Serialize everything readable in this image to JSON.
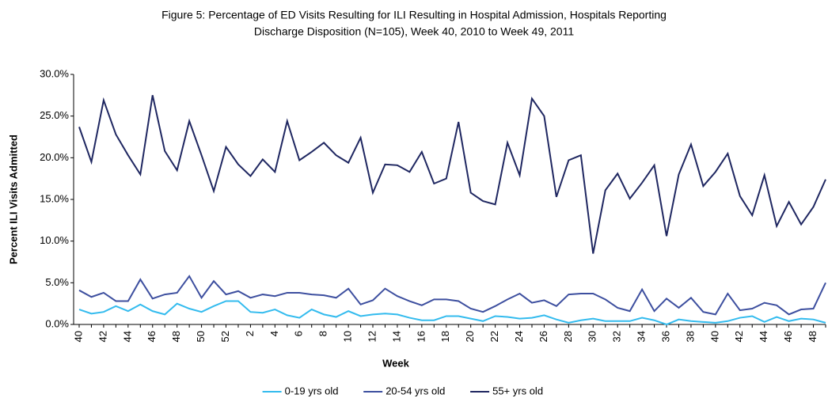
{
  "chart_data": {
    "type": "line",
    "title": [
      "Figure 5: Percentage of ED Visits Resulting for ILI Resulting in Hospital Admission, Hospitals Reporting",
      "Discharge Disposition (N=105), Week 40, 2010 to Week 49, 2011"
    ],
    "x_label": "Week",
    "y_label": "Percent ILI Visits Admitted",
    "categories": [
      "40",
      null,
      "42",
      null,
      "44",
      null,
      "46",
      null,
      "48",
      null,
      "50",
      null,
      "52",
      null,
      "2",
      null,
      "4",
      null,
      "6",
      null,
      "8",
      null,
      "10",
      null,
      "12",
      null,
      "14",
      null,
      "16",
      null,
      "18",
      null,
      "20",
      null,
      "22",
      null,
      "24",
      null,
      "26",
      null,
      "28",
      null,
      "30",
      null,
      "32",
      null,
      "34",
      null,
      "36",
      null,
      "38",
      null,
      "40",
      null,
      "42",
      null,
      "44",
      null,
      "46",
      null,
      "48",
      null
    ],
    "series": [
      {
        "name": "0-19 yrs old",
        "color": "#33bbee",
        "values": [
          1.8,
          1.3,
          1.5,
          2.2,
          1.6,
          2.4,
          1.6,
          1.2,
          2.5,
          1.9,
          1.5,
          2.2,
          2.8,
          2.8,
          1.5,
          1.4,
          1.8,
          1.1,
          0.8,
          1.8,
          1.2,
          0.9,
          1.6,
          1.0,
          1.2,
          1.3,
          1.2,
          0.8,
          0.5,
          0.5,
          1.0,
          1.0,
          0.7,
          0.4,
          1.0,
          0.9,
          0.7,
          0.8,
          1.1,
          0.6,
          0.2,
          0.5,
          0.7,
          0.4,
          0.4,
          0.4,
          0.8,
          0.5,
          0.0,
          0.6,
          0.4,
          0.3,
          0.2,
          0.4,
          0.8,
          1.0,
          0.3,
          0.9,
          0.4,
          0.7,
          0.6,
          0.2
        ]
      },
      {
        "name": "20-54 yrs old",
        "color": "#3d4f9f",
        "values": [
          4.1,
          3.3,
          3.8,
          2.8,
          2.8,
          5.4,
          3.1,
          3.6,
          3.8,
          5.8,
          3.2,
          5.2,
          3.6,
          4.0,
          3.2,
          3.6,
          3.4,
          3.8,
          3.8,
          3.6,
          3.5,
          3.2,
          4.3,
          2.4,
          2.9,
          4.3,
          3.4,
          2.8,
          2.3,
          3.0,
          3.0,
          2.8,
          1.9,
          1.5,
          2.2,
          3.0,
          3.7,
          2.6,
          2.9,
          2.2,
          3.6,
          3.7,
          3.7,
          3.0,
          2.0,
          1.6,
          4.2,
          1.6,
          3.1,
          2.0,
          3.2,
          1.5,
          1.2,
          3.7,
          1.7,
          1.9,
          2.6,
          2.3,
          1.2,
          1.8,
          1.9,
          5.0
        ]
      },
      {
        "name": "55+ yrs old",
        "color": "#1f2761",
        "values": [
          23.7,
          19.5,
          26.9,
          22.8,
          20.3,
          18.0,
          27.5,
          20.8,
          18.5,
          24.4,
          20.3,
          16.0,
          21.3,
          19.2,
          17.8,
          19.8,
          18.3,
          24.4,
          19.7,
          20.7,
          21.8,
          20.3,
          19.4,
          22.4,
          15.8,
          19.2,
          19.1,
          18.3,
          20.7,
          16.9,
          17.5,
          24.3,
          15.8,
          14.8,
          14.4,
          21.8,
          17.9,
          27.1,
          25.0,
          15.3,
          19.7,
          20.3,
          8.5,
          16.1,
          18.1,
          15.1,
          17.0,
          19.1,
          10.6,
          18.0,
          21.6,
          16.6,
          18.3,
          20.5,
          15.4,
          13.1,
          17.9,
          11.8,
          14.7,
          12.0,
          14.1,
          17.4
        ]
      }
    ],
    "ylim": [
      0,
      30
    ],
    "yticks": [
      {
        "value": 0,
        "label": "0.0%"
      },
      {
        "value": 5,
        "label": "5.0%"
      },
      {
        "value": 10,
        "label": "10.0%"
      },
      {
        "value": 15,
        "label": "15.0%"
      },
      {
        "value": 20,
        "label": "20.0%"
      },
      {
        "value": 25,
        "label": "25.0%"
      },
      {
        "value": 30,
        "label": "30.0%"
      }
    ],
    "grid": false,
    "legend": "bottom"
  }
}
